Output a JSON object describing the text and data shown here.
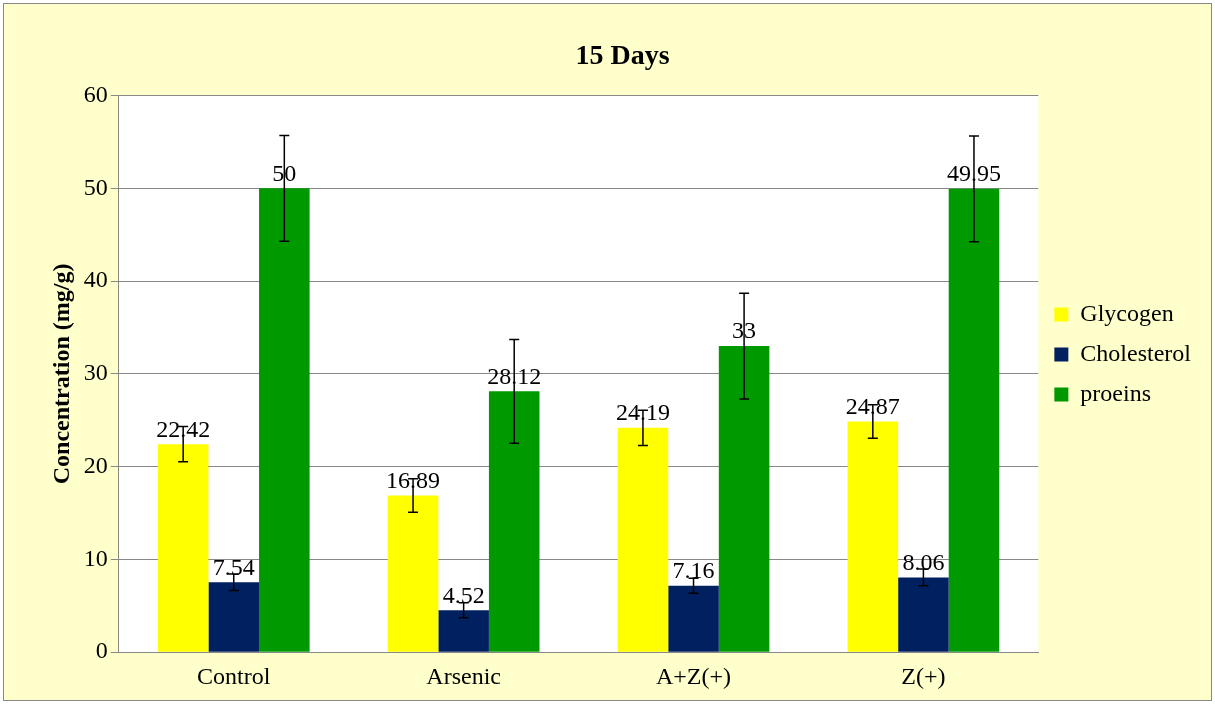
{
  "chart_data": {
    "type": "bar",
    "title": "15 Days",
    "ylabel": "Concentration (mg/g)",
    "categories": [
      "Control",
      "Arsenic",
      "A+Z(+)",
      "Z(+)"
    ],
    "series": [
      {
        "name": "Glycogen",
        "color": "#ffff00",
        "values": [
          22.42,
          16.89,
          24.19,
          24.87
        ],
        "errors": [
          1.9,
          1.8,
          1.9,
          1.8
        ]
      },
      {
        "name": "Cholesterol",
        "color": "#002060",
        "values": [
          7.54,
          4.52,
          7.16,
          8.06
        ],
        "errors": [
          0.9,
          0.8,
          0.8,
          0.9
        ]
      },
      {
        "name": "proeins",
        "color": "#009900",
        "values": [
          50,
          28.12,
          33,
          49.95
        ],
        "errors": [
          5.7,
          5.6,
          5.7,
          5.7
        ]
      }
    ],
    "ylim": [
      0,
      60
    ],
    "yticks": [
      0,
      10,
      20,
      30,
      40,
      50,
      60
    ],
    "grid": "y",
    "legend": "right",
    "data_labels": true
  }
}
